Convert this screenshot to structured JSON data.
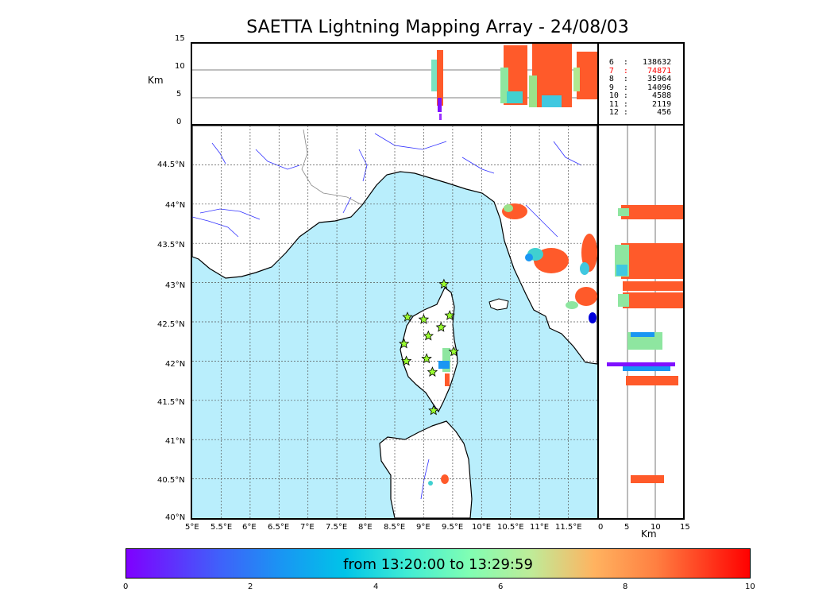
{
  "title": "SAETTA Lightning Mapping Array - 24/08/03",
  "altitude_panel": {
    "unit": "Km",
    "ticks": [
      "15",
      "10",
      "5",
      "0"
    ]
  },
  "map": {
    "lat_ticks": [
      "44.5°N",
      "44°N",
      "43.5°N",
      "43°N",
      "42.5°N",
      "42°N",
      "41.5°N",
      "41°N",
      "40.5°N",
      "40°N"
    ],
    "lon_ticks": [
      "5°E",
      "5.5°E",
      "6°E",
      "6.5°E",
      "7°E",
      "7.5°E",
      "8°E",
      "8.5°E",
      "9°E",
      "9.5°E",
      "10°E",
      "10.5°E",
      "11°E",
      "11.5°E"
    ],
    "lon_range": [
      5,
      12
    ],
    "lat_range": [
      40,
      45
    ],
    "sea_color": "#b9eefc",
    "river_color": "#3333ff"
  },
  "side_panel": {
    "unit": "Km",
    "ticks": [
      "0",
      "5",
      "10",
      "15"
    ]
  },
  "legend": {
    "rows": [
      {
        "label": "6",
        "value": "138632",
        "color": "#000000"
      },
      {
        "label": "7",
        "value": "74871",
        "color": "#ff0000"
      },
      {
        "label": "8",
        "value": "35964",
        "color": "#000000"
      },
      {
        "label": "9",
        "value": "14096",
        "color": "#000000"
      },
      {
        "label": "10",
        "value": "4588",
        "color": "#000000"
      },
      {
        "label": "11",
        "value": "2119",
        "color": "#000000"
      },
      {
        "label": "12",
        "value": "456",
        "color": "#000000"
      }
    ]
  },
  "colorbar": {
    "label": "from 13:20:00 to 13:29:59",
    "ticks": [
      "0",
      "2",
      "4",
      "6",
      "8",
      "10"
    ]
  },
  "stations": [
    {
      "lon": 9.35,
      "lat": 42.98
    },
    {
      "lon": 8.72,
      "lat": 42.56
    },
    {
      "lon": 9.0,
      "lat": 42.53
    },
    {
      "lon": 9.45,
      "lat": 42.58
    },
    {
      "lon": 9.3,
      "lat": 42.43
    },
    {
      "lon": 9.08,
      "lat": 42.32
    },
    {
      "lon": 8.66,
      "lat": 42.22
    },
    {
      "lon": 9.52,
      "lat": 42.12
    },
    {
      "lon": 9.05,
      "lat": 42.03
    },
    {
      "lon": 8.7,
      "lat": 42.0
    },
    {
      "lon": 9.15,
      "lat": 41.86
    },
    {
      "lon": 9.17,
      "lat": 41.37
    }
  ]
}
